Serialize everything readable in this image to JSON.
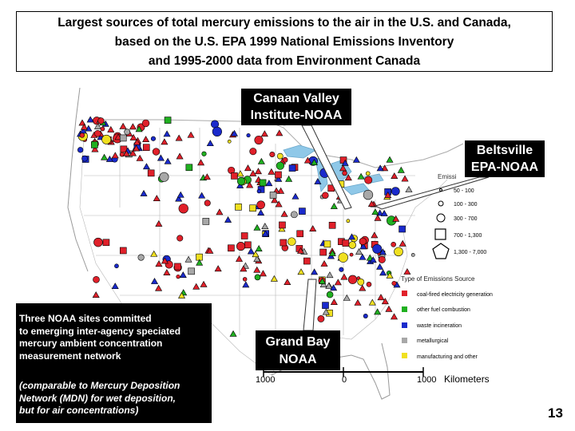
{
  "title": {
    "line1": "Largest sources of total mercury emissions to the air in the U.S. and Canada,",
    "line2": "based on the U.S. EPA 1999 National Emissions Inventory",
    "line3": "and 1995-2000 data from Environment Canada"
  },
  "sites": {
    "canaan": {
      "line1": "Canaan Valley",
      "line2": "Institute-NOAA"
    },
    "beltsville": {
      "line1": "Beltsville",
      "line2": "EPA-NOAA"
    },
    "grand_bay": {
      "line1": "Grand Bay",
      "line2": "NOAA"
    }
  },
  "noaa_box": {
    "line1": "Three NOAA sites committed",
    "line2": "to emerging inter-agency speciated",
    "line3": "mercury ambient concentration",
    "line4": "measurement network",
    "italic1": "(comparable to Mercury Deposition",
    "italic2": "Network (MDN) for wet deposition,",
    "italic3": "but for air concentrations)"
  },
  "size_legend": {
    "title": "Emissi",
    "items": [
      "50 - 100",
      "100 - 300",
      "300 - 700",
      "700 - 1,300",
      "1,300 - 7,000"
    ]
  },
  "type_legend": {
    "title": "Type of Emissions Source",
    "items": [
      {
        "label": "coal-fired electricity generation",
        "color": "#e0202a"
      },
      {
        "label": "other fuel combustion",
        "color": "#20b020"
      },
      {
        "label": "waste incineration",
        "color": "#1a2acc"
      },
      {
        "label": "metallurgical",
        "color": "#a8a8a8"
      },
      {
        "label": "manufacturing and other",
        "color": "#f0e020"
      }
    ]
  },
  "scale_bar": {
    "left": "1000",
    "mid": "0",
    "right": "1000",
    "unit": "Kilometers"
  },
  "page_number": "13",
  "colors": {
    "coal": "#e0202a",
    "other_fuel": "#20b020",
    "waste": "#1a2acc",
    "metal": "#a8a8a8",
    "manufacturing": "#f0e020",
    "water": "#8fc8e8"
  }
}
